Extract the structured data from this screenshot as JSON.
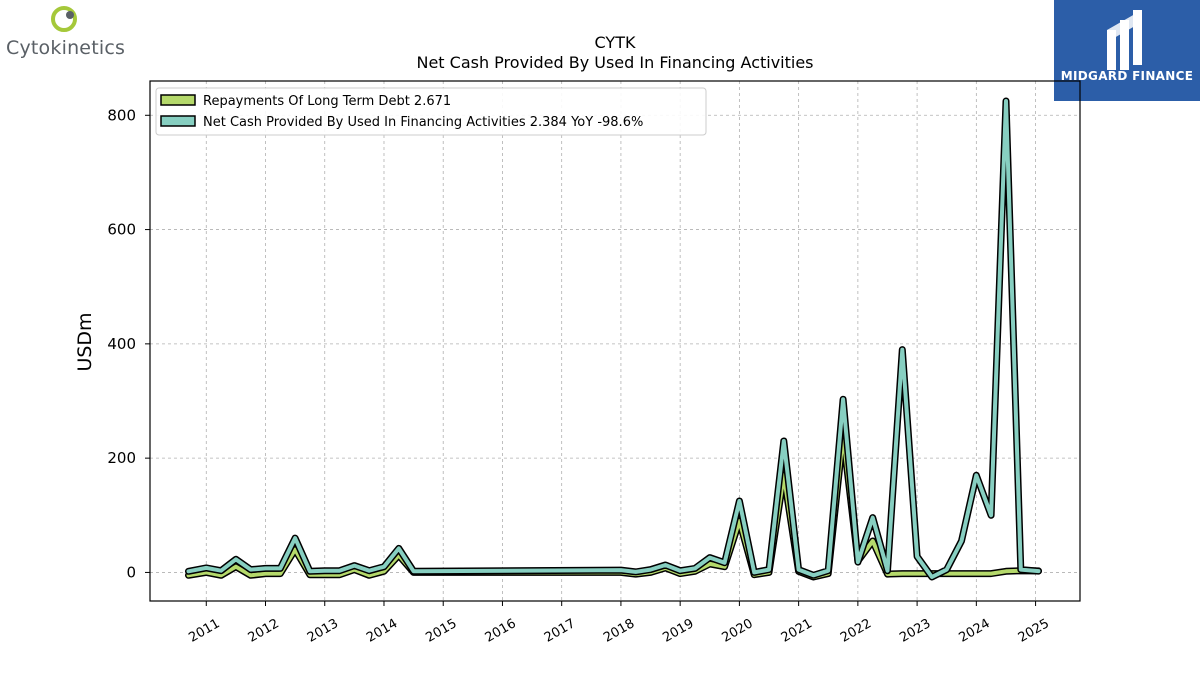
{
  "header": {
    "ticker": "CYTK",
    "title": "Net Cash Provided By Used In Financing Activities"
  },
  "logos": {
    "left_brand": "Cytokinetics",
    "right_brand": "MIDGARD FINANCE"
  },
  "colors": {
    "series_debt": "#b5d96b",
    "series_financing": "#87cfc1",
    "outline": "#000000",
    "grid": "#b0b0b0",
    "brand_blue": "#2c5ea8"
  },
  "chart_data": {
    "type": "line",
    "ylabel": "USDm",
    "ylim": [
      -50,
      860
    ],
    "xlim": [
      2010.05,
      2025.75
    ],
    "yticks": [
      0,
      200,
      400,
      600,
      800
    ],
    "xticks": [
      2011,
      2012,
      2013,
      2014,
      2015,
      2016,
      2017,
      2018,
      2019,
      2020,
      2021,
      2022,
      2023,
      2024,
      2025
    ],
    "xtick_labels": [
      "2011",
      "2012",
      "2013",
      "2014",
      "2015",
      "2016",
      "2017",
      "2018",
      "2019",
      "2020",
      "2021",
      "2022",
      "2023",
      "2024",
      "2025"
    ],
    "grid": true,
    "legend_position": "top-left",
    "series": [
      {
        "name": "Repayments Of Long Term Debt",
        "legend_value": "2.671",
        "legend_label": "Repayments Of Long Term Debt  2.671",
        "x": [
          2010.7,
          2011.0,
          2011.25,
          2011.5,
          2011.75,
          2012.0,
          2012.25,
          2012.5,
          2012.75,
          2013.0,
          2013.25,
          2013.5,
          2013.75,
          2014.0,
          2014.25,
          2014.5,
          2018.0,
          2018.25,
          2018.5,
          2018.75,
          2019.0,
          2019.25,
          2019.5,
          2019.75,
          2020.0,
          2020.25,
          2020.5,
          2020.75,
          2021.0,
          2021.25,
          2021.5,
          2021.75,
          2022.0,
          2022.25,
          2022.5,
          2022.75,
          2023.0,
          2023.25,
          2023.5,
          2023.75,
          2024.0,
          2024.25,
          2024.5,
          2024.75,
          2025.05
        ],
        "values": [
          -5,
          0,
          -5,
          10,
          -5,
          -2,
          -2,
          40,
          -4,
          -4,
          -4,
          5,
          -5,
          2,
          30,
          0,
          0,
          -3,
          0,
          8,
          -2,
          2,
          15,
          10,
          90,
          -4,
          0,
          170,
          2,
          -8,
          -2,
          240,
          20,
          55,
          -3,
          -2,
          -2,
          -2,
          -2,
          -2,
          -2,
          -2,
          2,
          3,
          2.671
        ]
      },
      {
        "name": "Net Cash Provided By Used In Financing Activities",
        "legend_value": "2.384",
        "legend_yoy": "YoY -98.6%",
        "legend_label": "Net Cash Provided By Used In Financing Activities  2.384 YoY -98.6%",
        "x": [
          2010.7,
          2011.0,
          2011.25,
          2011.5,
          2011.75,
          2012.0,
          2012.25,
          2012.5,
          2012.75,
          2013.0,
          2013.25,
          2013.5,
          2013.75,
          2014.0,
          2014.25,
          2014.5,
          2018.0,
          2018.25,
          2018.5,
          2018.75,
          2019.0,
          2019.25,
          2019.5,
          2019.75,
          2020.0,
          2020.25,
          2020.5,
          2020.75,
          2021.0,
          2021.25,
          2021.5,
          2021.75,
          2022.0,
          2022.25,
          2022.5,
          2022.75,
          2023.0,
          2023.25,
          2023.5,
          2023.75,
          2024.0,
          2024.25,
          2024.5,
          2024.75,
          2025.05
        ],
        "values": [
          2,
          8,
          3,
          23,
          5,
          7,
          7,
          60,
          2,
          3,
          3,
          12,
          3,
          10,
          42,
          2,
          4,
          1,
          5,
          13,
          3,
          7,
          26,
          17,
          125,
          0,
          5,
          230,
          5,
          -5,
          3,
          303,
          18,
          96,
          3,
          390,
          28,
          -8,
          5,
          55,
          170,
          100,
          825,
          5,
          2.384
        ]
      }
    ]
  }
}
